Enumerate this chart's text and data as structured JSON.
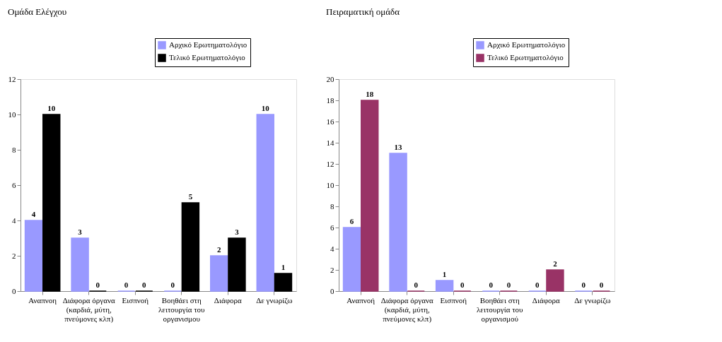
{
  "chart_data": [
    {
      "type": "bar",
      "title": "Ομάδα Ελέγχου",
      "categories": [
        "Αναπνοη",
        "Διάφορα όργανα (καρδιά, μύτη, πνεύμονες κλπ)",
        "Εισπνοή",
        "Βοηθάει στη λειτουργία του οργανισμου",
        "Διάφορα",
        "Δε γνωρίζω"
      ],
      "series": [
        {
          "name": "Αρχικό Ερωτηματολόγιο",
          "color": "#9999ff",
          "values": [
            4,
            3,
            0,
            0,
            2,
            10
          ]
        },
        {
          "name": "Τελικό Ερωτηματολόγιο",
          "color": "#000000",
          "values": [
            10,
            0,
            0,
            5,
            3,
            1
          ]
        }
      ],
      "ylim": [
        0,
        12
      ],
      "yticks": [
        0,
        2,
        4,
        6,
        8,
        10,
        12
      ],
      "data_labels": true,
      "legend": "top right",
      "grid": false
    },
    {
      "type": "bar",
      "title": "Πειραματική ομάδα",
      "categories": [
        "Αναπνοή",
        "Διάφορα όργανα (καρδιά, μύτη, πνεύμονες κλπ)",
        "Εισπνοή",
        "Βοηθάει στη λειτουργία του οργανισμού",
        "Διάφορα",
        "Δε γνωρίζω"
      ],
      "series": [
        {
          "name": "Αρχικό Ερωτηματολόγιο",
          "color": "#9999ff",
          "values": [
            6,
            13,
            1,
            0,
            0,
            0
          ]
        },
        {
          "name": "Τελικό Ερωτηματολόγιο",
          "color": "#993366",
          "values": [
            18,
            0,
            0,
            0,
            2,
            0
          ]
        }
      ],
      "ylim": [
        0,
        20
      ],
      "yticks": [
        0,
        2,
        4,
        6,
        8,
        10,
        12,
        14,
        16,
        18,
        20
      ],
      "data_labels": true,
      "legend": "top right",
      "grid": false
    }
  ]
}
